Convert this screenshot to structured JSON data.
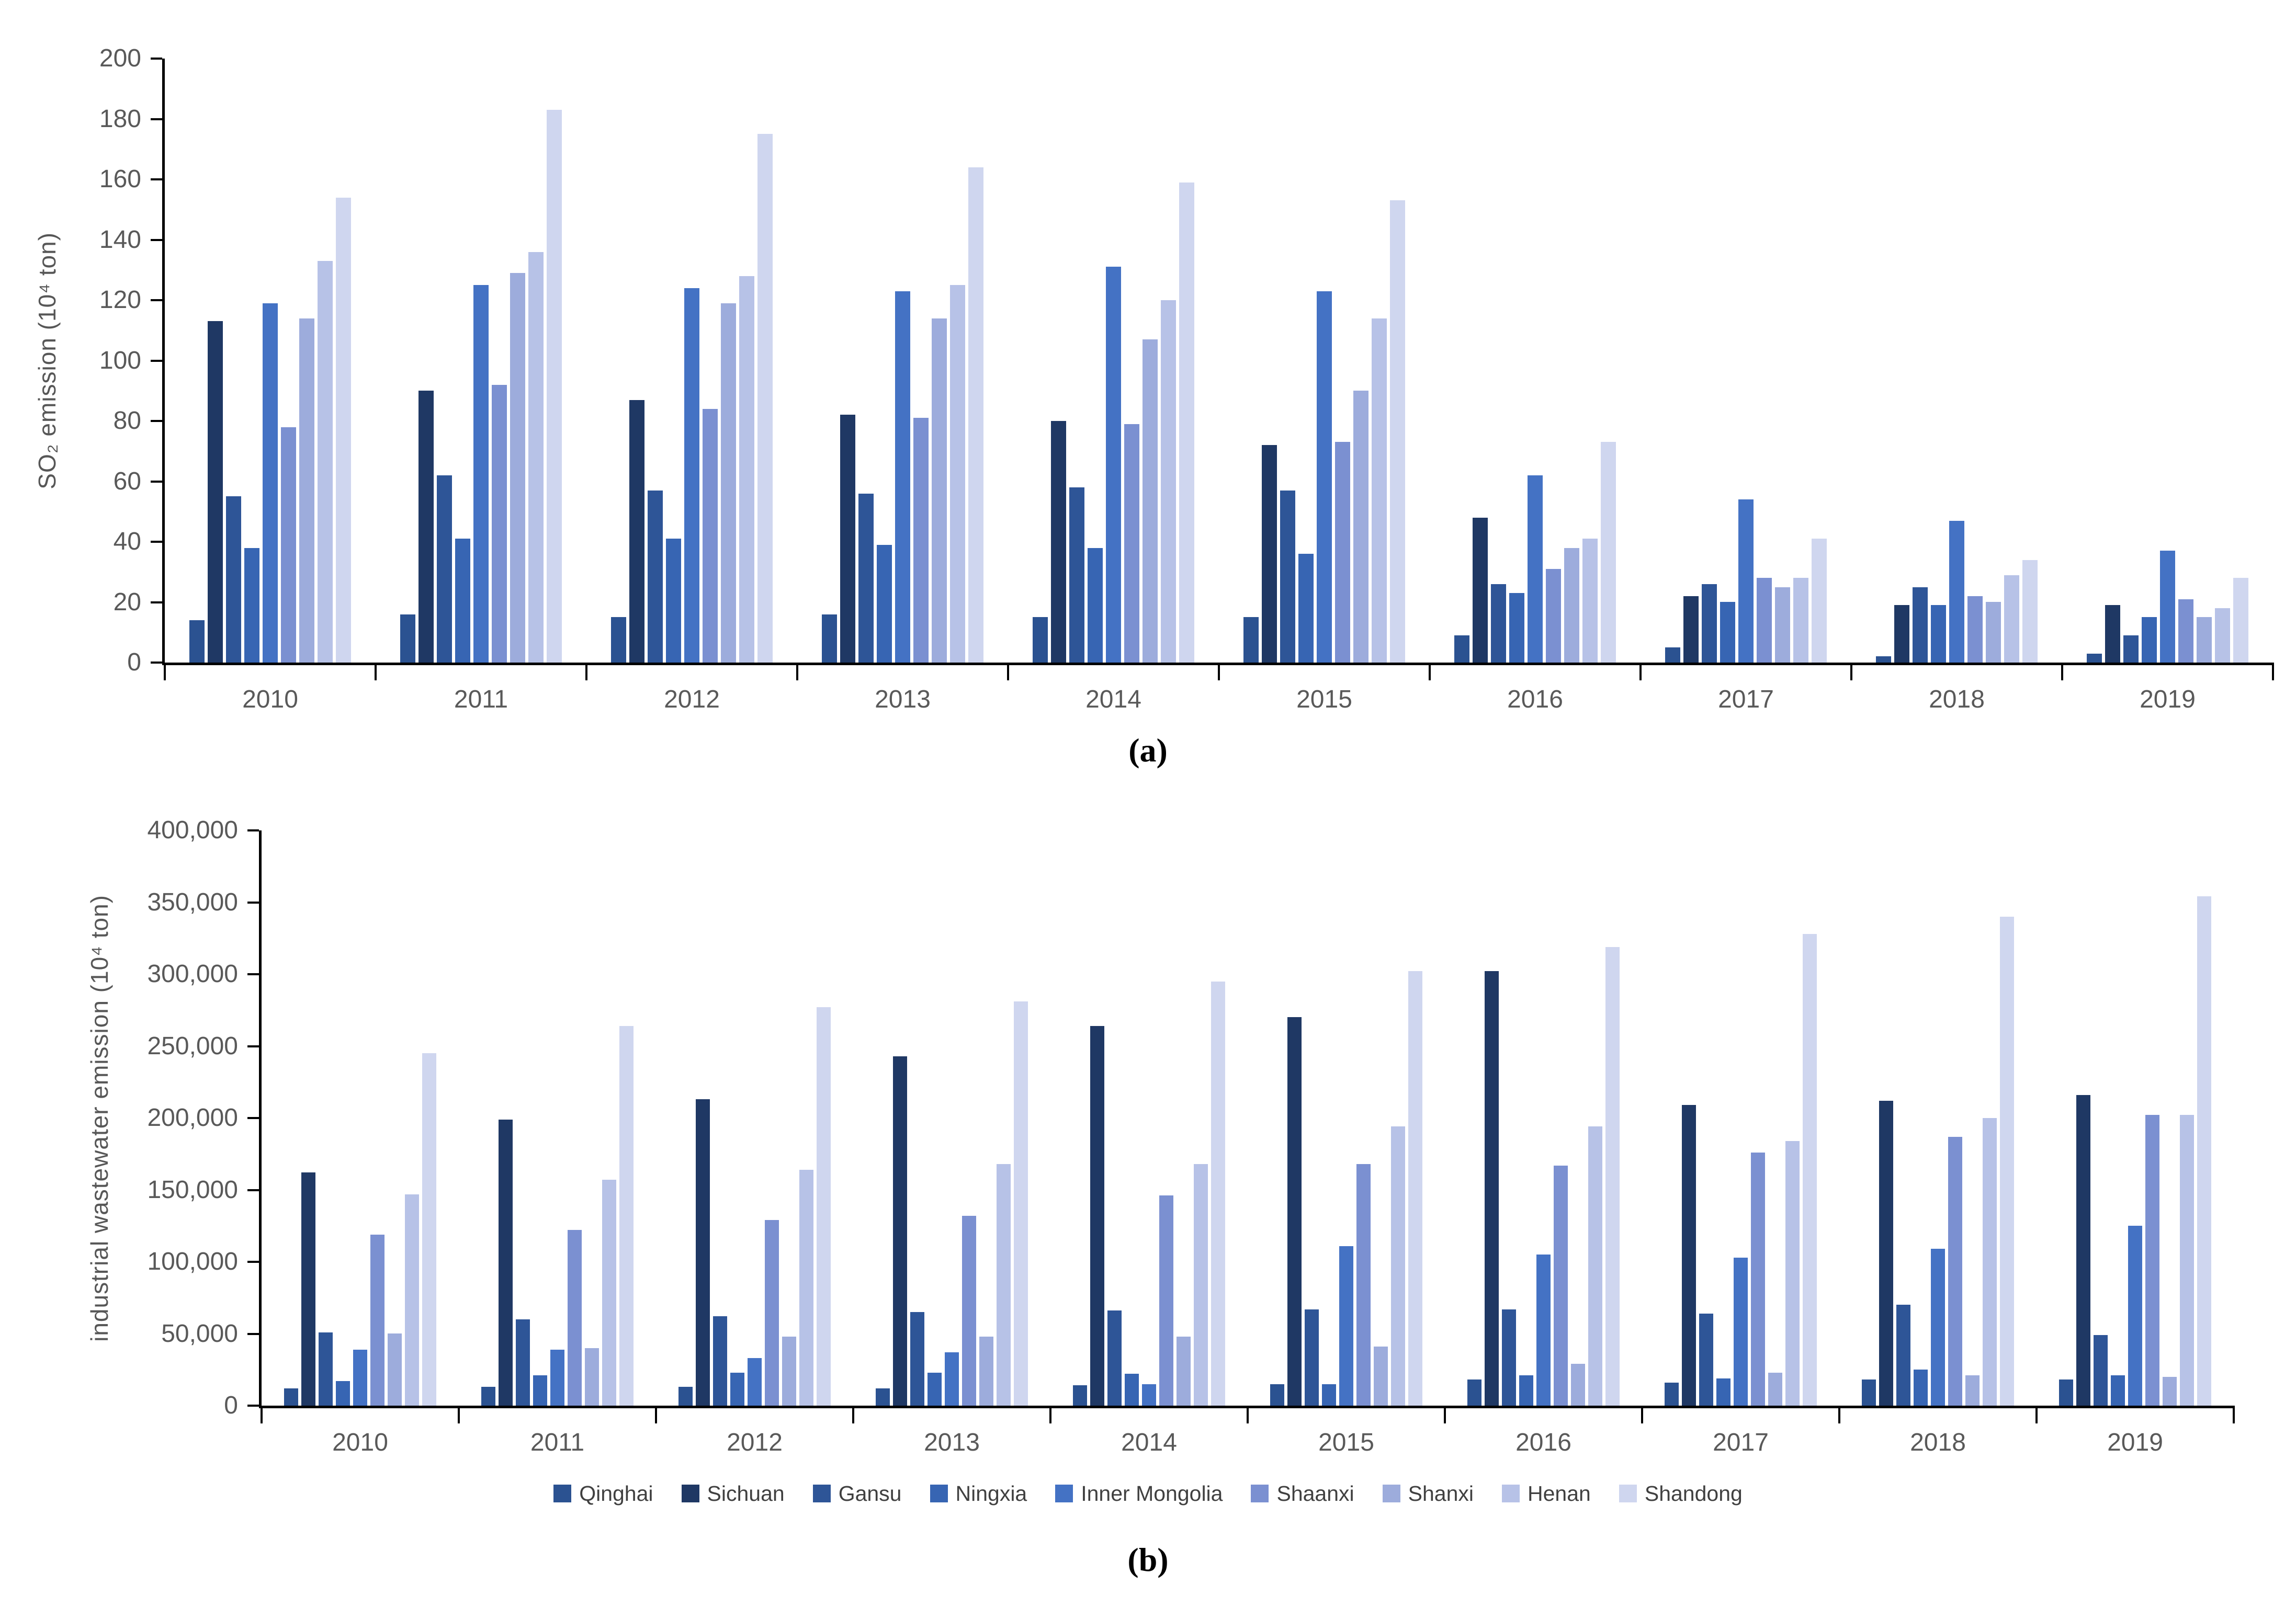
{
  "figure": {
    "caption_a": "(a)",
    "caption_b": "(b)",
    "background": "#ffffff",
    "axis_color": "#000000",
    "tick_label_color": "#595959",
    "legend_label_color": "#404040"
  },
  "chart_data": [
    {
      "type": "bar",
      "panel": "a",
      "title": "",
      "xlabel": "",
      "ylabel": "SO₂ emission (10⁴ ton)",
      "ylim": [
        0,
        200
      ],
      "grid": false,
      "legend_position": "none",
      "yticks": [
        {
          "value": 0,
          "label": "0"
        },
        {
          "value": 20,
          "label": "20"
        },
        {
          "value": 40,
          "label": "40"
        },
        {
          "value": 60,
          "label": "60"
        },
        {
          "value": 80,
          "label": "80"
        },
        {
          "value": 100,
          "label": "100"
        },
        {
          "value": 120,
          "label": "120"
        },
        {
          "value": 140,
          "label": "140"
        },
        {
          "value": 160,
          "label": "160"
        },
        {
          "value": 180,
          "label": "180"
        },
        {
          "value": 200,
          "label": "200"
        }
      ],
      "categories": [
        "2010",
        "2011",
        "2012",
        "2013",
        "2014",
        "2015",
        "2016",
        "2017",
        "2018",
        "2019"
      ],
      "series": [
        {
          "name": "Qinghai",
          "color": "#2b5291",
          "values": [
            14,
            16,
            15,
            16,
            15,
            15,
            9,
            5,
            2,
            3
          ]
        },
        {
          "name": "Sichuan",
          "color": "#1f3864",
          "values": [
            113,
            90,
            87,
            82,
            80,
            72,
            48,
            22,
            19,
            19
          ]
        },
        {
          "name": "Gansu",
          "color": "#2e5597",
          "values": [
            55,
            62,
            57,
            56,
            58,
            57,
            26,
            26,
            25,
            9
          ]
        },
        {
          "name": "Ningxia",
          "color": "#3765b3",
          "values": [
            38,
            41,
            41,
            39,
            38,
            36,
            23,
            20,
            19,
            15
          ]
        },
        {
          "name": "Inner Mongolia",
          "color": "#4472c4",
          "values": [
            119,
            125,
            124,
            123,
            131,
            123,
            62,
            54,
            47,
            37
          ]
        },
        {
          "name": "Shaanxi",
          "color": "#7b90d1",
          "values": [
            78,
            92,
            84,
            81,
            79,
            73,
            31,
            28,
            22,
            21
          ]
        },
        {
          "name": "Shanxi",
          "color": "#9dacdc",
          "values": [
            114,
            129,
            119,
            114,
            107,
            90,
            38,
            25,
            20,
            15
          ]
        },
        {
          "name": "Henan",
          "color": "#b7c2e7",
          "values": [
            133,
            136,
            128,
            125,
            120,
            114,
            41,
            28,
            29,
            18
          ]
        },
        {
          "name": "Shandong",
          "color": "#cfd6ef",
          "values": [
            154,
            183,
            175,
            164,
            159,
            153,
            73,
            41,
            34,
            28
          ]
        }
      ]
    },
    {
      "type": "bar",
      "panel": "b",
      "title": "",
      "xlabel": "",
      "ylabel": "industrial wastewater emission (10⁴ ton)",
      "ylim": [
        0,
        400000
      ],
      "grid": false,
      "legend_position": "bottom",
      "yticks": [
        {
          "value": 0,
          "label": "0"
        },
        {
          "value": 50000,
          "label": "50,000"
        },
        {
          "value": 100000,
          "label": "100,000"
        },
        {
          "value": 150000,
          "label": "150,000"
        },
        {
          "value": 200000,
          "label": "200,000"
        },
        {
          "value": 250000,
          "label": "250,000"
        },
        {
          "value": 300000,
          "label": "300,000"
        },
        {
          "value": 350000,
          "label": "350,000"
        },
        {
          "value": 400000,
          "label": "400,000"
        }
      ],
      "categories": [
        "2010",
        "2011",
        "2012",
        "2013",
        "2014",
        "2015",
        "2016",
        "2017",
        "2018",
        "2019"
      ],
      "series": [
        {
          "name": "Qinghai",
          "color": "#2b5291",
          "values": [
            12000,
            13000,
            13000,
            12000,
            14000,
            15000,
            18000,
            16000,
            18000,
            18000
          ]
        },
        {
          "name": "Sichuan",
          "color": "#1f3864",
          "values": [
            162000,
            199000,
            213000,
            243000,
            264000,
            270000,
            302000,
            209000,
            212000,
            216000
          ]
        },
        {
          "name": "Gansu",
          "color": "#2e5597",
          "values": [
            51000,
            60000,
            62000,
            65000,
            66000,
            67000,
            67000,
            64000,
            70000,
            49000
          ]
        },
        {
          "name": "Ningxia",
          "color": "#3765b3",
          "values": [
            17000,
            21000,
            23000,
            23000,
            22000,
            15000,
            21000,
            19000,
            25000,
            21000
          ]
        },
        {
          "name": "Inner Mongolia",
          "color": "#4472c4",
          "values": [
            39000,
            39000,
            33000,
            37000,
            15000,
            111000,
            105000,
            103000,
            109000,
            125000
          ]
        },
        {
          "name": "Shaanxi",
          "color": "#7b90d1",
          "values": [
            119000,
            122000,
            129000,
            132000,
            146000,
            168000,
            167000,
            176000,
            187000,
            202000
          ]
        },
        {
          "name": "Shanxi",
          "color": "#9dacdc",
          "values": [
            50000,
            40000,
            48000,
            48000,
            48000,
            41000,
            29000,
            23000,
            21000,
            20000
          ]
        },
        {
          "name": "Henan",
          "color": "#b7c2e7",
          "values": [
            147000,
            157000,
            164000,
            168000,
            168000,
            194000,
            194000,
            184000,
            200000,
            202000
          ]
        },
        {
          "name": "Shandong",
          "color": "#cfd6ef",
          "values": [
            245000,
            264000,
            277000,
            281000,
            295000,
            302000,
            319000,
            328000,
            340000,
            354000
          ]
        }
      ]
    }
  ]
}
